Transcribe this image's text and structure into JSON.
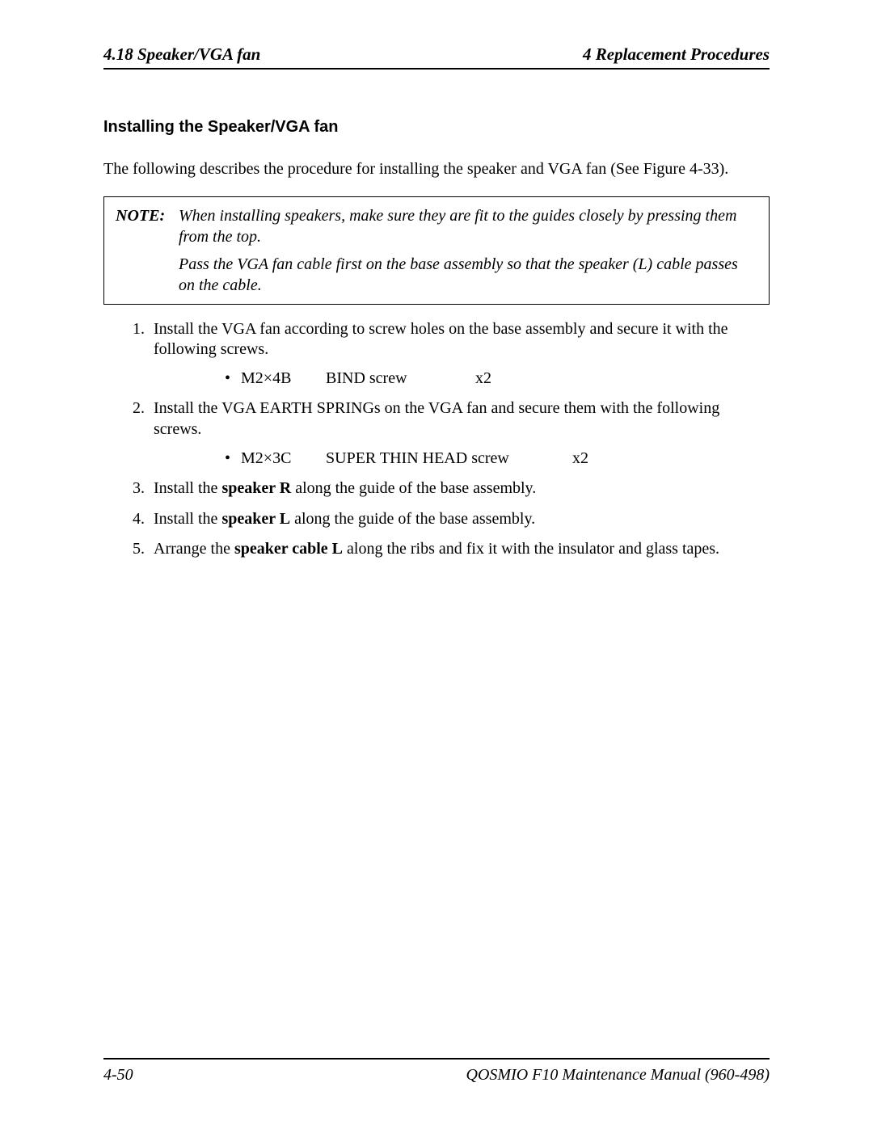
{
  "header": {
    "left": "4.18  Speaker/VGA fan",
    "right": "4  Replacement Procedures"
  },
  "title": "Installing the Speaker/VGA fan",
  "intro": "The following describes the procedure for installing the speaker and VGA fan (See Figure 4-33).",
  "note": {
    "label": "NOTE:",
    "para1": "When installing speakers, make sure they are fit to the guides closely by pressing them from the top.",
    "para2": "Pass the VGA fan cable first on the base assembly so that the speaker (L) cable passes on the cable."
  },
  "steps": {
    "s1": "Install the VGA fan according to screw holes on the base assembly and secure it with the following screws.",
    "b1a": "M2×4B",
    "b1b": "BIND screw",
    "b1c": "x2",
    "s2": "Install the VGA EARTH SPRINGs on the VGA fan and secure them with the following screws.",
    "b2a": "M2×3C",
    "b2b": "SUPER THIN HEAD screw",
    "b2c": "x2",
    "s3_pre": "Install the ",
    "s3_bold": "speaker R",
    "s3_post": " along the guide of the base assembly.",
    "s4_pre": "Install the ",
    "s4_bold": "speaker L",
    "s4_post": " along the guide of the base assembly.",
    "s5_pre": "Arrange the ",
    "s5_bold": "speaker cable L",
    "s5_post": " along the ribs and fix it with the insulator and glass tapes."
  },
  "footer": {
    "left": "4-50",
    "right": "QOSMIO F10  Maintenance Manual (960-498)"
  }
}
